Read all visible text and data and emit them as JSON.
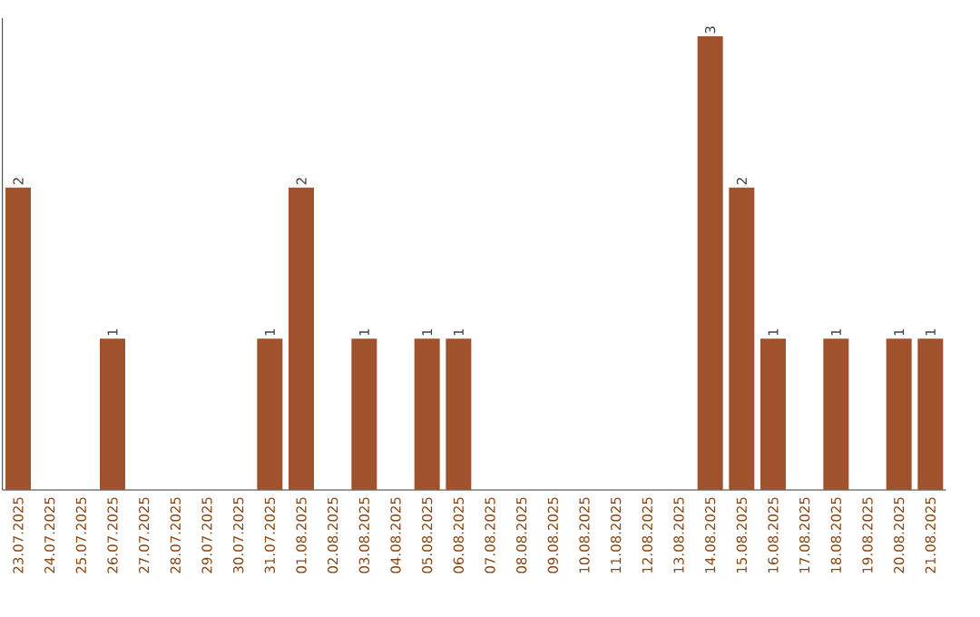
{
  "chart_data": {
    "type": "bar",
    "categories": [
      "23.07.2025",
      "24.07.2025",
      "25.07.2025",
      "26.07.2025",
      "27.07.2025",
      "28.07.2025",
      "29.07.2025",
      "30.07.2025",
      "31.07.2025",
      "01.08.2025",
      "02.08.2025",
      "03.08.2025",
      "04.08.2025",
      "05.08.2025",
      "06.08.2025",
      "07.08.2025",
      "08.08.2025",
      "09.08.2025",
      "10.08.2025",
      "11.08.2025",
      "12.08.2025",
      "13.08.2025",
      "14.08.2025",
      "15.08.2025",
      "16.08.2025",
      "17.08.2025",
      "18.08.2025",
      "19.08.2025",
      "20.08.2025",
      "21.08.2025"
    ],
    "values": [
      2,
      0,
      0,
      1,
      0,
      0,
      0,
      0,
      1,
      2,
      0,
      1,
      0,
      1,
      1,
      0,
      0,
      0,
      0,
      0,
      0,
      0,
      3,
      2,
      1,
      0,
      1,
      0,
      1,
      1
    ],
    "value_labels": [
      "2",
      null,
      null,
      "1",
      null,
      null,
      null,
      null,
      "1",
      "2",
      null,
      "1",
      null,
      "1",
      "1",
      null,
      null,
      null,
      null,
      null,
      null,
      null,
      "3",
      "2",
      "1",
      null,
      "1",
      null,
      "1",
      "1"
    ],
    "color": "#a0522d",
    "ylim": [
      0,
      3.12
    ]
  }
}
